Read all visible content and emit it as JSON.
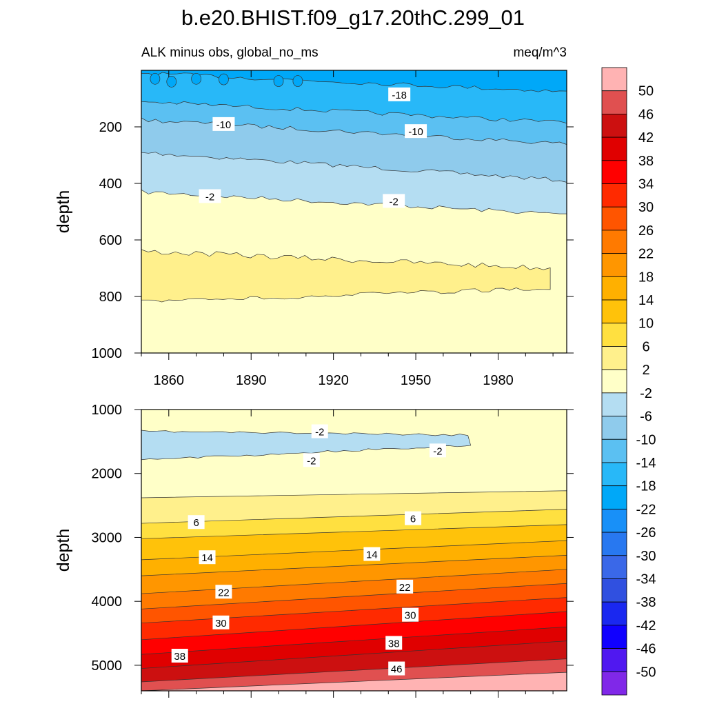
{
  "title": "b.e20.BHIST.f09_g17.20thC.299_01",
  "subtitle_left": "ALK minus obs, global_no_ms",
  "subtitle_right": "meq/m^3",
  "chart_data": [
    {
      "type": "contour",
      "panel": "upper",
      "ylabel": "depth",
      "xlim": [
        1850,
        2005
      ],
      "ylim": [
        1000,
        0
      ],
      "x_ticks": [
        "1860",
        "1890",
        "1920",
        "1950",
        "1980"
      ],
      "y_ticks": [
        "200",
        "400",
        "600",
        "800",
        "1000"
      ],
      "contour_labels": [
        {
          "text": "-18",
          "x": 1944,
          "y": 85
        },
        {
          "text": "-10",
          "x": 1880,
          "y": 190
        },
        {
          "text": "-10",
          "x": 1950,
          "y": 215
        },
        {
          "text": "-2",
          "x": 1875,
          "y": 445
        },
        {
          "text": "-2",
          "x": 1942,
          "y": 462
        }
      ],
      "regions": [
        {
          "level": "-22 to -18",
          "x": [
            1850,
            2005
          ],
          "depth": [
            0,
            110
          ]
        },
        {
          "level": "-18 to -14",
          "x": [
            1850,
            2005
          ],
          "depth": [
            80,
            200
          ]
        },
        {
          "level": "-14 to -10",
          "x": [
            1850,
            2005
          ],
          "depth": [
            170,
            270
          ]
        },
        {
          "level": "-10 to -6",
          "x": [
            1850,
            2005
          ],
          "depth": [
            270,
            380
          ]
        },
        {
          "level": "-6 to -2",
          "x": [
            1850,
            2005
          ],
          "depth": [
            380,
            510
          ]
        },
        {
          "level": "-2 to 2",
          "x": [
            1850,
            2005
          ],
          "depth": [
            420,
            1000
          ]
        },
        {
          "level": "2 to 6",
          "x": [
            1850,
            1999
          ],
          "depth": [
            640,
            820
          ]
        }
      ]
    },
    {
      "type": "contour",
      "panel": "lower",
      "ylabel": "depth",
      "xlim": [
        1850,
        2005
      ],
      "ylim": [
        5400,
        1000
      ],
      "y_ticks": [
        "1000",
        "2000",
        "3000",
        "4000",
        "5000"
      ],
      "contour_labels": [
        {
          "text": "-2",
          "x": 1915,
          "y": 1340
        },
        {
          "text": "-2",
          "x": 1912,
          "y": 1790
        },
        {
          "text": "-2",
          "x": 1958,
          "y": 1640
        },
        {
          "text": "6",
          "x": 1870,
          "y": 2760
        },
        {
          "text": "6",
          "x": 1949,
          "y": 2700
        },
        {
          "text": "14",
          "x": 1874,
          "y": 3310
        },
        {
          "text": "14",
          "x": 1934,
          "y": 3260
        },
        {
          "text": "22",
          "x": 1880,
          "y": 3850
        },
        {
          "text": "22",
          "x": 1946,
          "y": 3770
        },
        {
          "text": "30",
          "x": 1879,
          "y": 4330
        },
        {
          "text": "30",
          "x": 1948,
          "y": 4210
        },
        {
          "text": "38",
          "x": 1864,
          "y": 4850
        },
        {
          "text": "38",
          "x": 1942,
          "y": 4650
        },
        {
          "text": "46",
          "x": 1943,
          "y": 5050
        }
      ],
      "boundaries": [
        {
          "level": "2",
          "depth_start": 2380,
          "depth_end": 2270
        },
        {
          "level": "6",
          "depth_start": 2780,
          "depth_end": 2560
        },
        {
          "level": "10",
          "depth_start": 3020,
          "depth_end": 2800
        },
        {
          "level": "14",
          "depth_start": 3350,
          "depth_end": 3050
        },
        {
          "level": "18",
          "depth_start": 3600,
          "depth_end": 3280
        },
        {
          "level": "22",
          "depth_start": 3880,
          "depth_end": 3500
        },
        {
          "level": "26",
          "depth_start": 4120,
          "depth_end": 3720
        },
        {
          "level": "30",
          "depth_start": 4340,
          "depth_end": 3940
        },
        {
          "level": "34",
          "depth_start": 4600,
          "depth_end": 4160
        },
        {
          "level": "38",
          "depth_start": 4830,
          "depth_end": 4400
        },
        {
          "level": "42",
          "depth_start": 5050,
          "depth_end": 4620
        },
        {
          "level": "46",
          "depth_start": 5260,
          "depth_end": 4900
        },
        {
          "level": "50",
          "depth_start": 5400,
          "depth_end": 5110
        }
      ]
    }
  ],
  "colorbar": {
    "labels": [
      "50",
      "46",
      "42",
      "38",
      "34",
      "30",
      "26",
      "22",
      "18",
      "14",
      "10",
      "6",
      "2",
      "-2",
      "-6",
      "-10",
      "-14",
      "-18",
      "-22",
      "-26",
      "-30",
      "-34",
      "-38",
      "-42",
      "-46",
      "-50"
    ],
    "colors": [
      "#ffb3b3",
      "#e05050",
      "#cc1010",
      "#e00000",
      "#ff0000",
      "#ff2a00",
      "#ff5500",
      "#ff7a00",
      "#ff9600",
      "#ffb000",
      "#ffc20a",
      "#ffe040",
      "#fff08c",
      "#ffffc8",
      "#b4ddf2",
      "#8fcbec",
      "#5bc0f2",
      "#28b8f8",
      "#00a8f8",
      "#1890f8",
      "#2878f0",
      "#3a68e8",
      "#3050e0",
      "#1a28f0",
      "#1000ff",
      "#5018f0",
      "#8028e8"
    ]
  }
}
